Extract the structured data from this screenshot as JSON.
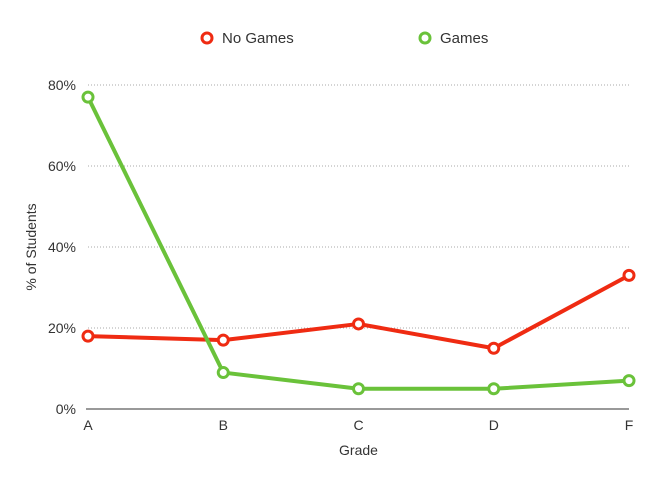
{
  "chart_data": {
    "type": "line",
    "categories": [
      "A",
      "B",
      "C",
      "D",
      "F"
    ],
    "series": [
      {
        "name": "No Games",
        "values": [
          18,
          17,
          21,
          15,
          33
        ],
        "color": "#ef2b12"
      },
      {
        "name": "Games",
        "values": [
          77,
          9,
          5,
          5,
          7
        ],
        "color": "#6ac23a"
      }
    ],
    "xlabel": "Grade",
    "ylabel": "% of Students",
    "ylim": [
      0,
      80
    ],
    "yticks": [
      0,
      20,
      40,
      60,
      80
    ],
    "ytick_labels": [
      "0%",
      "20%",
      "40%",
      "60%",
      "80%"
    ],
    "grid": true,
    "legend_position": "top-center"
  }
}
